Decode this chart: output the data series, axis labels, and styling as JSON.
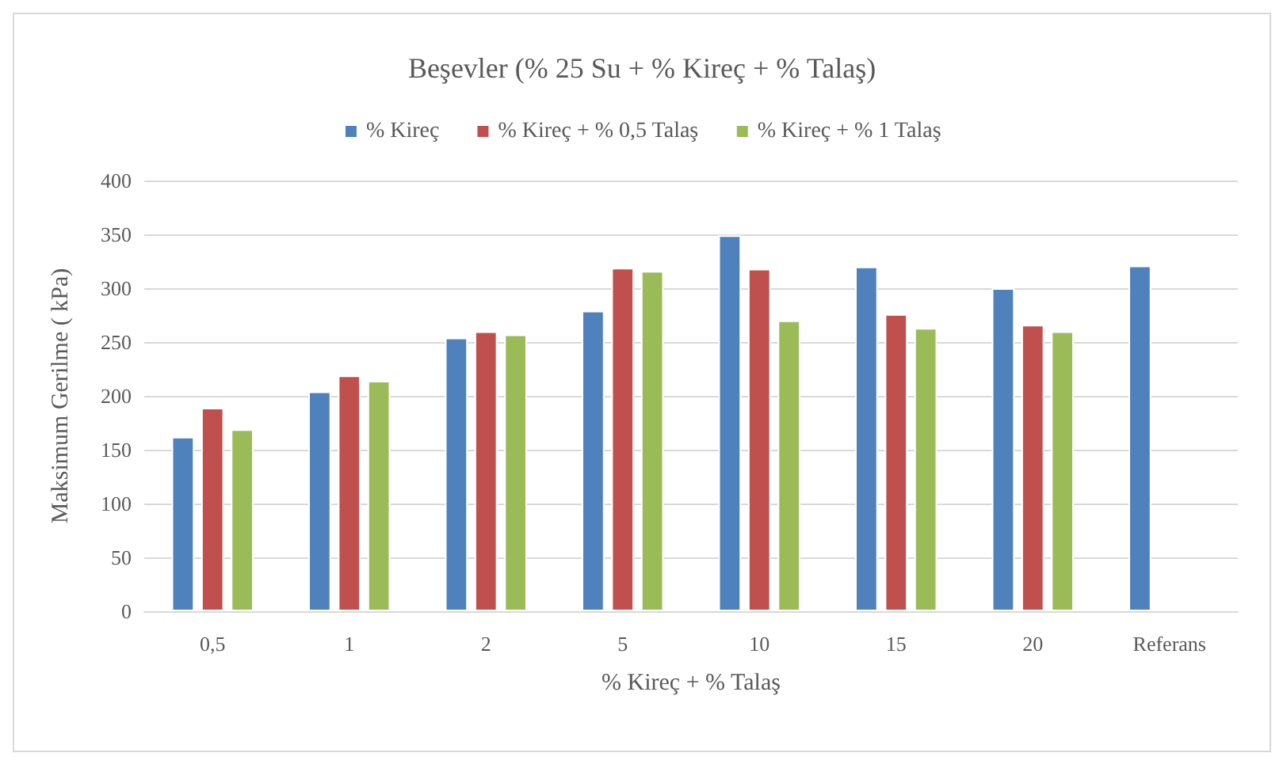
{
  "chart_data": {
    "type": "bar",
    "title": "Beşevler (% 25 Su + % Kireç + % Talaş)",
    "xlabel": "% Kireç + % Talaş",
    "ylabel": "Maksimum Gerilme ( kPa)",
    "categories": [
      "0,5",
      "1",
      "2",
      "5",
      "10",
      "15",
      "20",
      "Referans"
    ],
    "series": [
      {
        "name": "% Kireç",
        "color": "#4f81bd",
        "values": [
          162,
          204,
          254,
          279,
          349,
          320,
          300,
          321
        ]
      },
      {
        "name": "% Kireç + % 0,5 Talaş",
        "color": "#c0504d",
        "values": [
          189,
          219,
          260,
          319,
          318,
          276,
          266,
          null
        ]
      },
      {
        "name": "% Kireç + % 1 Talaş",
        "color": "#9bbb59",
        "values": [
          169,
          214,
          257,
          316,
          270,
          263,
          260,
          null
        ]
      }
    ],
    "ylim": [
      0,
      400
    ],
    "yticks": [
      0,
      50,
      100,
      150,
      200,
      250,
      300,
      350,
      400
    ],
    "grid": "y",
    "legend": "top"
  }
}
